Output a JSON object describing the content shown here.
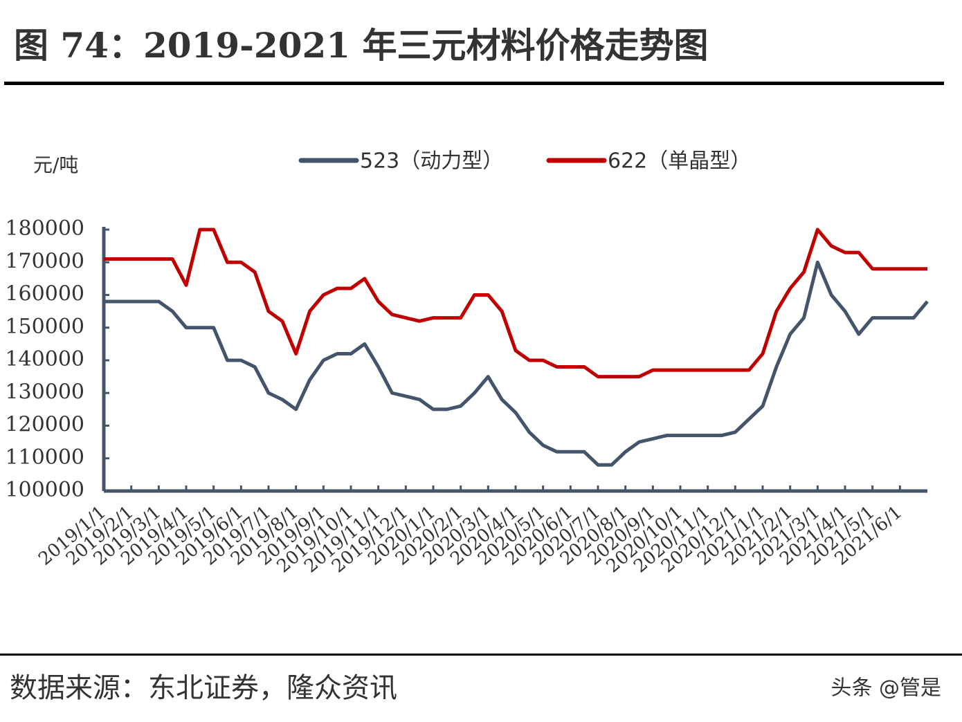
{
  "chart_data": {
    "type": "line",
    "title": "图 74：2019-2021 年三元材料价格走势图",
    "y_label": "元/吨",
    "source": "数据来源：东北证券，隆众资讯",
    "watermark": "头条 @管是",
    "legend": "top",
    "categories": [
      "2019/1/1",
      null,
      "2019/2/1",
      null,
      "2019/3/1",
      null,
      "2019/4/1",
      null,
      "2019/5/1",
      null,
      "2019/6/1",
      null,
      "2019/7/1",
      null,
      "2019/8/1",
      null,
      "2019/9/1",
      null,
      "2019/10/1",
      null,
      "2019/11/1",
      null,
      "2019/12/1",
      null,
      "2020/1/1",
      null,
      "2020/2/1",
      null,
      "2020/3/1",
      null,
      "2020/4/1",
      null,
      "2020/5/1",
      null,
      "2020/6/1",
      null,
      "2020/7/1",
      null,
      "2020/8/1",
      null,
      "2020/9/1",
      null,
      "2020/10/1",
      null,
      "2020/11/1",
      null,
      "2020/12/1",
      null,
      "2021/1/1",
      null,
      "2021/2/1",
      null,
      "2021/3/1",
      null,
      "2021/4/1",
      null,
      "2021/5/1",
      null,
      "2021/6/1",
      null,
      null
    ],
    "series": [
      {
        "name": "523（动力型）",
        "color": "#44546a",
        "values": [
          158000,
          158000,
          158000,
          158000,
          158000,
          155000,
          150000,
          150000,
          150000,
          140000,
          140000,
          138000,
          130000,
          128000,
          125000,
          134000,
          140000,
          142000,
          142000,
          145000,
          138000,
          130000,
          129000,
          128000,
          125000,
          125000,
          126000,
          130000,
          135000,
          128000,
          124000,
          118000,
          114000,
          112000,
          112000,
          112000,
          108000,
          108000,
          112000,
          115000,
          116000,
          117000,
          117000,
          117000,
          117000,
          117000,
          118000,
          122000,
          126000,
          138000,
          148000,
          153000,
          170000,
          160000,
          155000,
          148000,
          153000,
          153000,
          153000,
          153000,
          158000
        ]
      },
      {
        "name": "622（单晶型）",
        "color": "#c00000",
        "values": [
          171000,
          171000,
          171000,
          171000,
          171000,
          171000,
          163000,
          180000,
          180000,
          170000,
          170000,
          167000,
          155000,
          152000,
          142000,
          155000,
          160000,
          162000,
          162000,
          165000,
          158000,
          154000,
          153000,
          152000,
          153000,
          153000,
          153000,
          160000,
          160000,
          155000,
          143000,
          140000,
          140000,
          138000,
          138000,
          138000,
          135000,
          135000,
          135000,
          135000,
          137000,
          137000,
          137000,
          137000,
          137000,
          137000,
          137000,
          137000,
          142000,
          155000,
          162000,
          167000,
          180000,
          175000,
          173000,
          173000,
          168000,
          168000,
          168000,
          168000,
          168000
        ]
      }
    ],
    "ylim": [
      100000,
      180000
    ],
    "yticks": [
      100000,
      110000,
      120000,
      130000,
      140000,
      150000,
      160000,
      170000,
      180000
    ]
  }
}
